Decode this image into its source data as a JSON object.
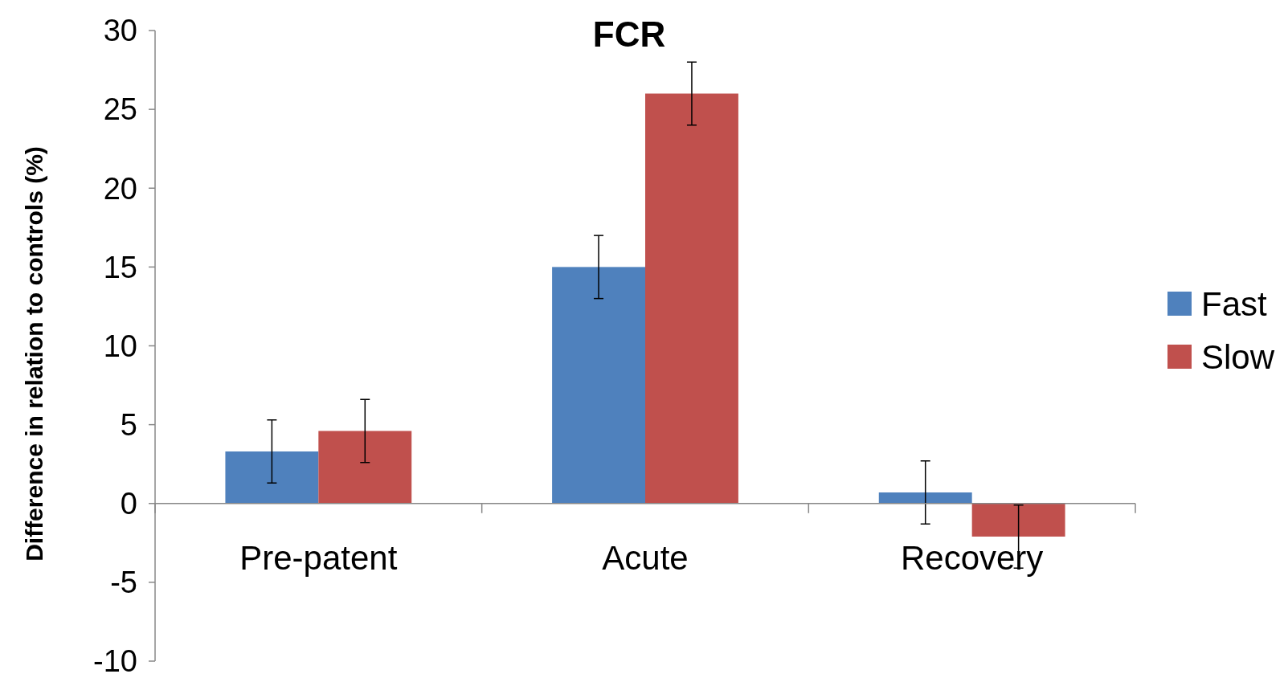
{
  "chart_data": {
    "type": "bar",
    "title": "FCR",
    "ylabel": "Difference in relation to controls (%)",
    "categories": [
      "Pre-patent",
      "Acute",
      "Recovery"
    ],
    "series": [
      {
        "name": "Fast",
        "color": "#4f81bd",
        "values": [
          3.3,
          15,
          0.7
        ],
        "errors": [
          2,
          2,
          2
        ]
      },
      {
        "name": "Slow",
        "color": "#c0504d",
        "values": [
          4.6,
          26,
          -2.1
        ],
        "errors": [
          2,
          2,
          2
        ]
      }
    ],
    "ylim": [
      -10,
      30
    ],
    "yticks": [
      -10,
      -5,
      0,
      5,
      10,
      15,
      20,
      25,
      30
    ],
    "grid": false,
    "legend": "right"
  }
}
